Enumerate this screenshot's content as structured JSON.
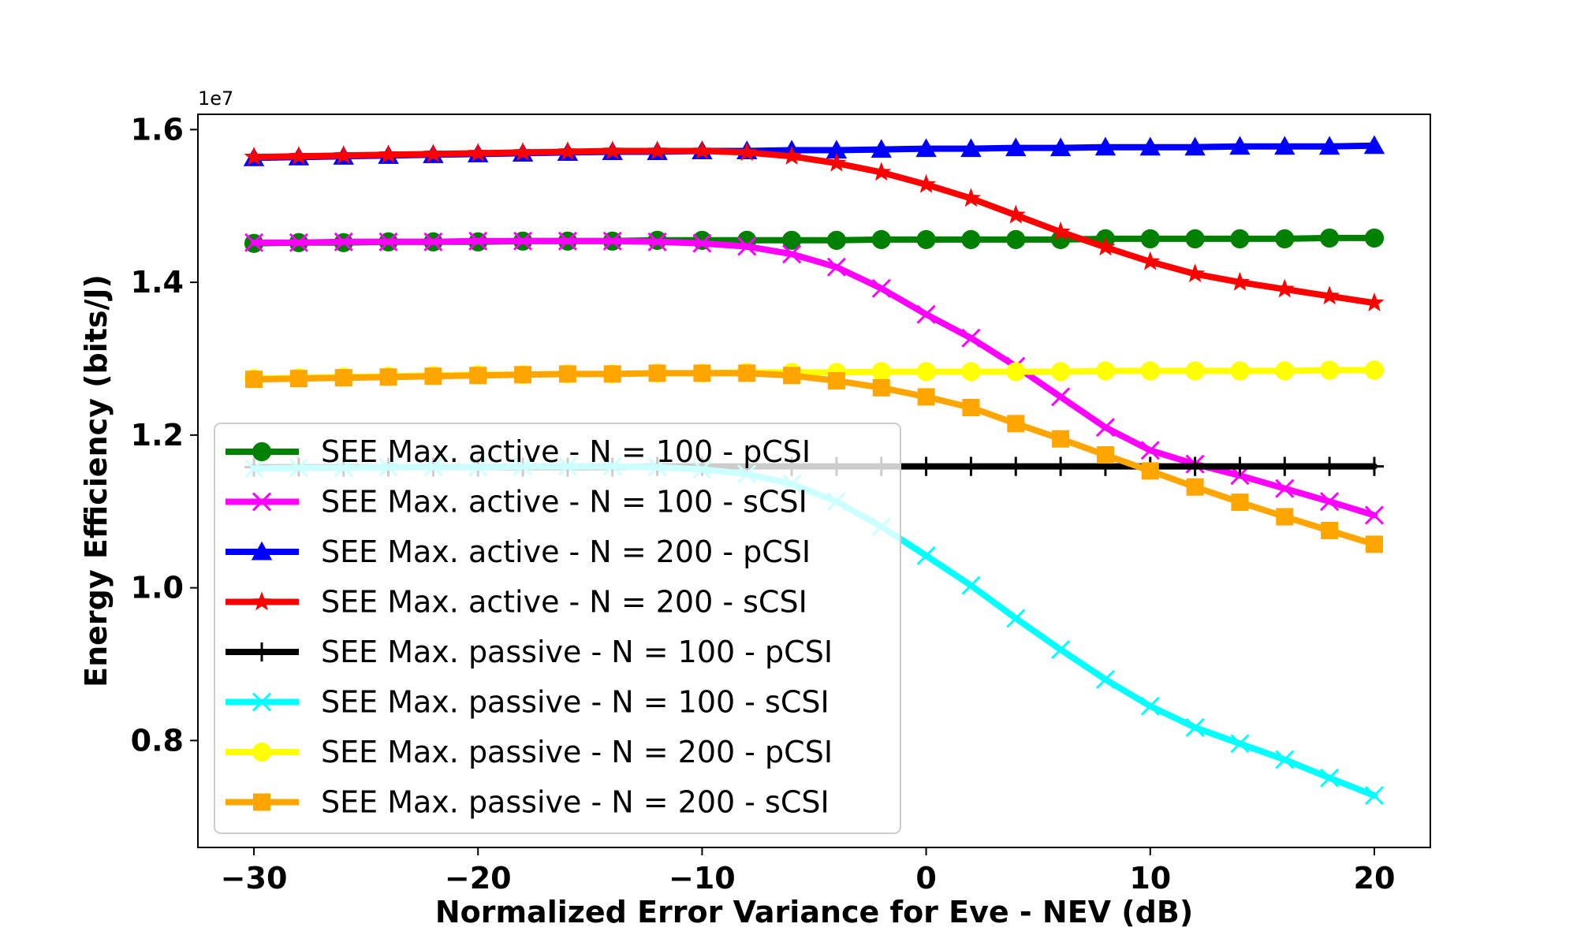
{
  "chart_data": {
    "type": "line",
    "xlabel": "Normalized Error Variance for Eve - NEV (dB)",
    "ylabel": "Energy Efficiency (bits/J)",
    "y_offset_label": "1e7",
    "xlim": [
      -32.5,
      22.5
    ],
    "ylim": [
      0.66,
      1.62
    ],
    "y_scale_factor": 10000000,
    "xticks": [
      -30,
      -20,
      -10,
      0,
      10,
      20
    ],
    "xtick_labels": [
      "−30",
      "−20",
      "−10",
      "0",
      "10",
      "20"
    ],
    "yticks": [
      0.8,
      1.0,
      1.2,
      1.4,
      1.6
    ],
    "ytick_labels": [
      "0.8",
      "1.0",
      "1.2",
      "1.4",
      "1.6"
    ],
    "grid": false,
    "legend_position": "lower-left",
    "x": [
      -30,
      -28,
      -26,
      -24,
      -22,
      -20,
      -18,
      -16,
      -14,
      -12,
      -10,
      -8,
      -6,
      -4,
      -2,
      0,
      2,
      4,
      6,
      8,
      10,
      12,
      14,
      16,
      18,
      20
    ],
    "series": [
      {
        "name": "SEE Max. active - N = 100 - pCSI",
        "color": "#008000",
        "marker": "circle",
        "values": [
          1.451,
          1.452,
          1.452,
          1.453,
          1.453,
          1.453,
          1.454,
          1.454,
          1.454,
          1.455,
          1.455,
          1.455,
          1.455,
          1.455,
          1.456,
          1.456,
          1.456,
          1.456,
          1.456,
          1.457,
          1.457,
          1.457,
          1.457,
          1.457,
          1.458,
          1.458
        ]
      },
      {
        "name": "SEE Max. active - N = 100 - sCSI",
        "color": "#ff00ff",
        "marker": "x",
        "values": [
          1.452,
          1.452,
          1.453,
          1.453,
          1.453,
          1.454,
          1.454,
          1.454,
          1.454,
          1.453,
          1.451,
          1.447,
          1.437,
          1.42,
          1.392,
          1.358,
          1.327,
          1.29,
          1.25,
          1.21,
          1.18,
          1.162,
          1.147,
          1.13,
          1.113,
          1.095
        ]
      },
      {
        "name": "SEE Max. active - N = 200 - pCSI",
        "color": "#0000ff",
        "marker": "triangle",
        "values": [
          1.563,
          1.564,
          1.565,
          1.566,
          1.567,
          1.568,
          1.569,
          1.57,
          1.571,
          1.571,
          1.572,
          1.572,
          1.573,
          1.573,
          1.574,
          1.575,
          1.575,
          1.576,
          1.576,
          1.577,
          1.577,
          1.577,
          1.578,
          1.578,
          1.578,
          1.579
        ]
      },
      {
        "name": "SEE Max. active - N = 200 - sCSI",
        "color": "#ff0000",
        "marker": "star",
        "values": [
          1.564,
          1.565,
          1.566,
          1.567,
          1.568,
          1.569,
          1.57,
          1.571,
          1.572,
          1.572,
          1.572,
          1.57,
          1.565,
          1.556,
          1.544,
          1.528,
          1.51,
          1.488,
          1.466,
          1.446,
          1.427,
          1.411,
          1.4,
          1.391,
          1.382,
          1.373
        ]
      },
      {
        "name": "SEE Max. passive - N = 100 - pCSI",
        "color": "#000000",
        "marker": "plus",
        "values": [
          1.158,
          1.158,
          1.158,
          1.158,
          1.158,
          1.158,
          1.158,
          1.158,
          1.158,
          1.159,
          1.159,
          1.159,
          1.159,
          1.159,
          1.159,
          1.159,
          1.159,
          1.159,
          1.159,
          1.159,
          1.159,
          1.159,
          1.159,
          1.159,
          1.159,
          1.159
        ]
      },
      {
        "name": "SEE Max. passive - N = 100 - sCSI",
        "color": "#00ffff",
        "marker": "x",
        "values": [
          1.156,
          1.157,
          1.157,
          1.158,
          1.158,
          1.158,
          1.159,
          1.159,
          1.159,
          1.158,
          1.155,
          1.149,
          1.136,
          1.113,
          1.08,
          1.042,
          1.003,
          0.96,
          0.919,
          0.88,
          0.845,
          0.817,
          0.796,
          0.775,
          0.751,
          0.728
        ]
      },
      {
        "name": "SEE Max. passive - N = 200 - pCSI",
        "color": "#ffff00",
        "marker": "circle",
        "values": [
          1.274,
          1.275,
          1.276,
          1.277,
          1.278,
          1.279,
          1.279,
          1.28,
          1.28,
          1.281,
          1.281,
          1.282,
          1.282,
          1.282,
          1.283,
          1.283,
          1.283,
          1.283,
          1.283,
          1.284,
          1.284,
          1.284,
          1.284,
          1.284,
          1.285,
          1.285
        ]
      },
      {
        "name": "SEE Max. passive - N = 200 - sCSI",
        "color": "#ffa500",
        "marker": "square",
        "values": [
          1.273,
          1.274,
          1.275,
          1.276,
          1.277,
          1.278,
          1.279,
          1.28,
          1.28,
          1.281,
          1.281,
          1.281,
          1.278,
          1.271,
          1.262,
          1.25,
          1.236,
          1.215,
          1.195,
          1.174,
          1.153,
          1.132,
          1.112,
          1.093,
          1.075,
          1.057
        ]
      }
    ]
  }
}
